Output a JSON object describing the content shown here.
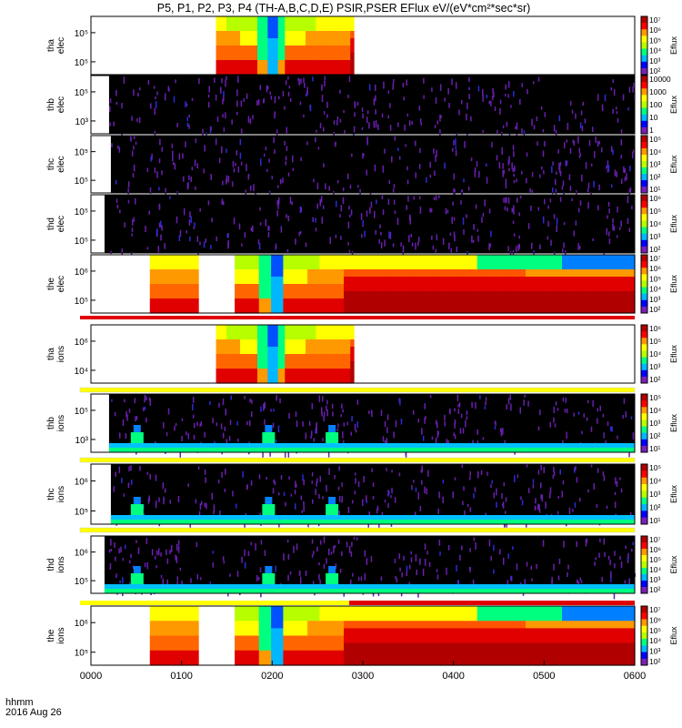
{
  "title": "P5, P1, P2, P3, P4 (TH-A,B,C,D,E) PSIR,PSER EFlux eV/(eV*cm²*sec*sr)",
  "colorbar_label": "Eflux",
  "x_axis": {
    "label_line1": "hhmm",
    "label_line2": "2016 Aug 26",
    "ticks": [
      "0000",
      "0100",
      "0200",
      "0300",
      "0400",
      "0500",
      "0600"
    ]
  },
  "chart_data": {
    "type": "heatmap",
    "x_range_hours": [
      0,
      6
    ],
    "panels": [
      {
        "id": "tha-elec",
        "label": [
          "tha",
          "elec"
        ],
        "y_ticks": [
          "10⁵",
          "10⁵"
        ],
        "cbar_ticks": [
          "10⁷",
          "10⁶",
          "10⁵",
          "10⁴",
          "10³",
          "10²"
        ],
        "style": "dense",
        "data_x": [
          1.38,
          2.9
        ],
        "level": "high",
        "bar": null
      },
      {
        "id": "thb-elec",
        "label": [
          "thb",
          "elec"
        ],
        "y_ticks": [
          "10⁵",
          "10³"
        ],
        "cbar_ticks": [
          "10000",
          "1000",
          "100",
          "10",
          "1"
        ],
        "style": "sparse",
        "data_x": [
          0.2,
          6.0
        ],
        "level": "low",
        "bar": null
      },
      {
        "id": "thc-elec",
        "label": [
          "thc",
          "elec"
        ],
        "y_ticks": [
          "10⁵",
          "10⁵"
        ],
        "cbar_ticks": [
          "10⁵",
          "10⁴",
          "10³",
          "10²",
          "10¹"
        ],
        "style": "sparse",
        "data_x": [
          0.22,
          6.0
        ],
        "level": "low",
        "bar": null
      },
      {
        "id": "thd-elec",
        "label": [
          "thd",
          "elec"
        ],
        "y_ticks": [
          "10⁵",
          "10⁵"
        ],
        "cbar_ticks": [
          "10⁶",
          "10⁵",
          "10⁴",
          "10³",
          "10²"
        ],
        "style": "sparse",
        "data_x": [
          0.15,
          6.0
        ],
        "level": "low",
        "bar": null
      },
      {
        "id": "the-elec",
        "label": [
          "the",
          "elec"
        ],
        "y_ticks": [
          "10⁶",
          "10⁵"
        ],
        "cbar_ticks": [
          "10⁷",
          "10⁶",
          "10⁵",
          "10⁴",
          "10³",
          "10²"
        ],
        "style": "dense",
        "data_x": [
          0.65,
          6.0
        ],
        "level": "high",
        "bar": "red"
      },
      {
        "id": "tha-ions",
        "label": [
          "tha",
          "ions"
        ],
        "y_ticks": [
          "10⁶",
          "10⁴"
        ],
        "cbar_ticks": [
          "10⁶",
          "10⁵",
          "10⁴",
          "10³",
          "10²"
        ],
        "style": "dense",
        "data_x": [
          1.38,
          2.9
        ],
        "level": "high",
        "bar": "yellow"
      },
      {
        "id": "thb-ions",
        "label": [
          "thb",
          "ions"
        ],
        "y_ticks": [
          "10⁵",
          "10³"
        ],
        "cbar_ticks": [
          "10⁵",
          "10⁴",
          "10³",
          "10²",
          "10¹"
        ],
        "style": "sparse",
        "data_x": [
          0.2,
          6.0
        ],
        "level": "low",
        "bar": "yellow"
      },
      {
        "id": "thc-ions",
        "label": [
          "thc",
          "ions"
        ],
        "y_ticks": [
          "10⁶",
          "10⁵"
        ],
        "cbar_ticks": [
          "10⁵",
          "10⁴",
          "10³",
          "10²",
          "10¹"
        ],
        "style": "sparse",
        "data_x": [
          0.22,
          6.0
        ],
        "level": "low",
        "bar": "yellow"
      },
      {
        "id": "thd-ions",
        "label": [
          "thd",
          "ions"
        ],
        "y_ticks": [
          "10⁶",
          "10⁵"
        ],
        "cbar_ticks": [
          "10⁷",
          "10⁶",
          "10⁵",
          "10⁴",
          "10³",
          "10²"
        ],
        "style": "sparse",
        "data_x": [
          0.15,
          6.0
        ],
        "level": "low",
        "bar": "yellow-red"
      },
      {
        "id": "the-ions",
        "label": [
          "the",
          "ions"
        ],
        "y_ticks": [
          "10⁶",
          "10⁵"
        ],
        "cbar_ticks": [
          "10⁷",
          "10⁶",
          "10⁵",
          "10⁴",
          "10³",
          "10²"
        ],
        "style": "dense",
        "data_x": [
          0.65,
          6.0
        ],
        "level": "high",
        "bar": null
      }
    ]
  },
  "colors": {
    "colormap": [
      "#ffffff",
      "#7a1fb8",
      "#0000ff",
      "#00b7ff",
      "#00ff7f",
      "#b7ff00",
      "#ffff00",
      "#ff9900",
      "#ff0000",
      "#b00000"
    ],
    "bar_red": "#e00000",
    "bar_yellow": "#ffff00"
  }
}
